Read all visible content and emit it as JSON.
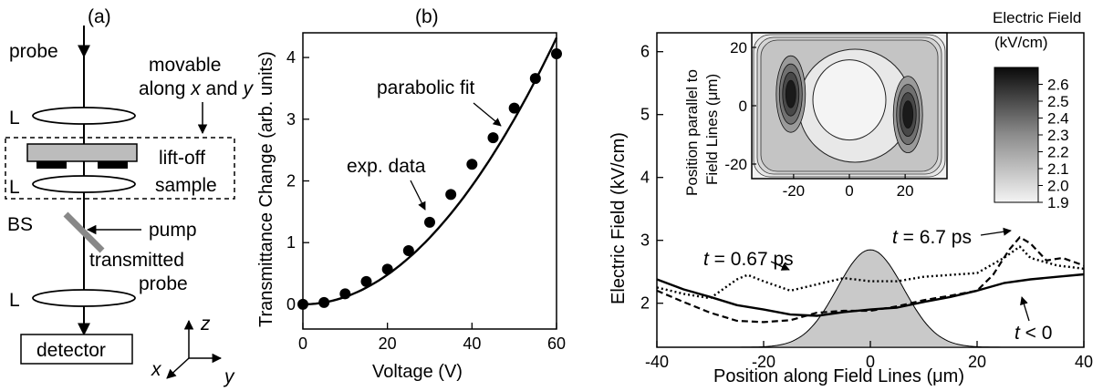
{
  "panel_a": {
    "label": "(a)",
    "probe": "probe",
    "movable_1": "movable",
    "movable_2_pre": "along ",
    "movable_x": "x",
    "movable_and": " and ",
    "movable_y": "y",
    "lens": "L",
    "liftoff": "lift-off",
    "sample": "sample",
    "bs": "BS",
    "pump": "pump",
    "transmitted_1": "transmitted",
    "transmitted_2": "probe",
    "detector": "detector",
    "axis_z": "z",
    "axis_x": "x",
    "axis_y": "y"
  },
  "panel_b": {
    "label": "(b)",
    "annotation_fit": "parabolic fit",
    "annotation_data": "exp. data"
  },
  "panel_c": {
    "curve_labels": {
      "t067": {
        "t": "t",
        "rest": " = 0.67 ps"
      },
      "t67": {
        "t": "t",
        "rest": " = 6.7 ps"
      },
      "tneg": {
        "t": "t",
        "rest": " < 0"
      }
    },
    "inset": {
      "ylabel_1": "Position parallel to",
      "ylabel_2": "Field Lines (μm)",
      "colorbar_title_1": "Electric Field",
      "colorbar_title_2": "(kV/cm)"
    }
  },
  "chart_data": [
    {
      "type": "scatter",
      "xlabel": "Voltage (V)",
      "ylabel": "Transmittance Change (arb. units)",
      "xlim": [
        0,
        60
      ],
      "ylim": [
        -0.4,
        4.4
      ],
      "xticks": [
        "0",
        "20",
        "40",
        "60"
      ],
      "yticks": [
        "0",
        "1",
        "2",
        "3",
        "4"
      ],
      "series": [
        {
          "name": "exp. data",
          "x": [
            0,
            5,
            10,
            15,
            20,
            25,
            30,
            35,
            40,
            45,
            50,
            55,
            60
          ],
          "y": [
            0.0,
            0.03,
            0.17,
            0.37,
            0.57,
            0.87,
            1.33,
            1.78,
            2.27,
            2.7,
            3.18,
            3.66,
            4.06
          ]
        },
        {
          "name": "parabolic fit",
          "type": "line",
          "x": [
            0,
            5,
            10,
            15,
            20,
            25,
            30,
            35,
            40,
            45,
            50,
            55,
            60
          ],
          "y": [
            0.0,
            0.03,
            0.12,
            0.27,
            0.48,
            0.75,
            1.08,
            1.47,
            1.92,
            2.43,
            3.0,
            3.63,
            4.32
          ]
        }
      ]
    },
    {
      "type": "line",
      "xlabel": "Position along Field Lines (μm)",
      "ylabel": "Electric Field (kV/cm)",
      "xlim": [
        -40,
        40
      ],
      "ylim": [
        1.3,
        6.3
      ],
      "xticks": [
        "-40",
        "-20",
        "0",
        "20",
        "40"
      ],
      "yticks": [
        "2",
        "3",
        "4",
        "5",
        "6"
      ],
      "series": [
        {
          "name": "t < 0",
          "x": [
            -40,
            -35,
            -30,
            -25,
            -20,
            -15,
            -10,
            -5,
            0,
            5,
            10,
            15,
            20,
            25,
            30,
            35,
            40
          ],
          "y": [
            2.38,
            2.22,
            2.1,
            1.97,
            1.9,
            1.82,
            1.8,
            1.86,
            1.9,
            1.93,
            2.02,
            2.1,
            2.2,
            2.32,
            2.38,
            2.42,
            2.46
          ]
        },
        {
          "name": "t = 0.67 ps",
          "x": [
            -40,
            -35,
            -30,
            -28,
            -25,
            -23,
            -20,
            -15,
            -10,
            -5,
            0,
            5,
            10,
            15,
            20,
            25,
            28,
            30,
            35,
            40
          ],
          "y": [
            2.25,
            2.15,
            2.08,
            2.2,
            2.38,
            2.45,
            2.35,
            2.2,
            2.3,
            2.4,
            2.35,
            2.35,
            2.42,
            2.45,
            2.48,
            2.72,
            2.9,
            2.72,
            2.6,
            2.55
          ]
        },
        {
          "name": "t = 6.7 ps",
          "x": [
            -40,
            -35,
            -30,
            -25,
            -20,
            -15,
            -10,
            -5,
            0,
            5,
            10,
            15,
            20,
            23,
            26,
            28,
            30,
            33,
            36,
            40
          ],
          "y": [
            2.2,
            2.02,
            1.85,
            1.72,
            1.7,
            1.73,
            1.85,
            1.88,
            1.88,
            1.95,
            2.05,
            2.12,
            2.2,
            2.45,
            2.85,
            3.05,
            2.95,
            2.68,
            2.72,
            2.6
          ]
        },
        {
          "name": "pulse profile (shaded)",
          "x": [
            -40,
            -30,
            -20,
            -15,
            -10,
            -5,
            0,
            5,
            10,
            15,
            20,
            30,
            40
          ],
          "y": [
            1.3,
            1.3,
            1.3,
            1.36,
            1.62,
            2.28,
            2.85,
            2.28,
            1.62,
            1.36,
            1.3,
            1.3,
            1.3
          ]
        }
      ]
    },
    {
      "type": "heatmap",
      "xticks": [
        "-20",
        "0",
        "20"
      ],
      "yticks": [
        "-20",
        "0",
        "20"
      ],
      "xlim": [
        -35,
        35
      ],
      "ylim": [
        -25,
        25
      ],
      "colorbar": {
        "title": "Electric Field (kV/cm)",
        "ticks": [
          "2.6",
          "2.5",
          "2.4",
          "2.3",
          "2.2",
          "2.1",
          "2.0",
          "1.9"
        ],
        "range": [
          1.9,
          2.7
        ]
      }
    }
  ]
}
